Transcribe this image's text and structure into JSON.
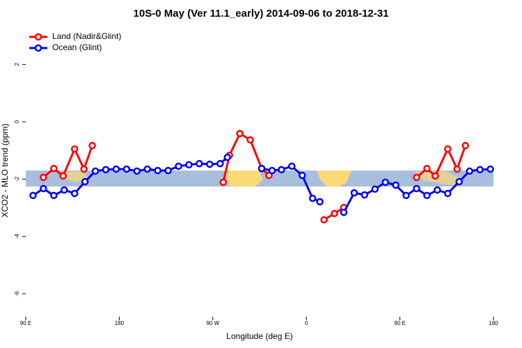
{
  "chart_data": {
    "type": "line",
    "title": "10S-0 May (Ver 11.1_early)   2014-09-06 to 2018-12-31",
    "x_label": "Longitude (deg E)",
    "y_label": "XCO2 - MLO trend (ppm)",
    "xlim": [
      90,
      540
    ],
    "ylim": [
      -6.8,
      3.4
    ],
    "xticks": [
      {
        "value": 90,
        "label": "90 E"
      },
      180,
      {
        "value": 270,
        "label": "90 W"
      },
      {
        "value": 360,
        "label": "0"
      },
      {
        "value": 450,
        "label": "90 E"
      },
      {
        "value": 540,
        "label": "180"
      }
    ],
    "yticks": [
      -6,
      -4,
      -2,
      0,
      2
    ],
    "legend": "top-left",
    "series": [
      {
        "name": "Land (Nadir&Glint)",
        "color": "#ff0000",
        "x": [
          107,
          117,
          126,
          137,
          146,
          154,
          null,
          280,
          286,
          296,
          306,
          317,
          324,
          null,
          377,
          387,
          396,
          null,
          466,
          476,
          484,
          496,
          505,
          513
        ],
        "values": [
          -1.94,
          -1.63,
          -1.89,
          -0.95,
          -1.65,
          -0.83,
          null,
          -2.11,
          -1.17,
          -0.41,
          -0.63,
          -1.63,
          -1.87,
          null,
          -3.42,
          -3.2,
          -2.99,
          null,
          -1.94,
          -1.63,
          -1.89,
          -0.95,
          -1.65,
          -0.83
        ]
      },
      {
        "name": "Ocean (Glint)",
        "color": "#0000ff",
        "x": [
          97,
          107,
          117,
          127,
          137,
          147,
          157,
          167,
          177,
          187,
          197,
          207,
          217,
          227,
          237,
          247,
          257,
          267,
          277,
          284,
          null,
          317,
          327,
          336,
          346,
          356,
          366,
          373,
          null,
          396,
          406,
          416,
          426,
          436,
          446,
          456,
          466,
          476,
          486,
          496,
          507,
          517,
          527,
          537
        ],
        "values": [
          -2.57,
          -2.33,
          -2.57,
          -2.38,
          -2.5,
          -2.09,
          -1.72,
          -1.67,
          -1.65,
          -1.65,
          -1.72,
          -1.65,
          -1.7,
          -1.7,
          -1.55,
          -1.5,
          -1.46,
          -1.48,
          -1.46,
          -1.24,
          null,
          -1.63,
          -1.7,
          -1.67,
          -1.55,
          -1.87,
          -2.67,
          -2.79,
          null,
          -3.16,
          -2.48,
          -2.55,
          -2.35,
          -2.11,
          -2.21,
          -2.57,
          -2.33,
          -2.57,
          -2.38,
          -2.5,
          -2.09,
          -1.72,
          -1.67,
          -1.65
        ]
      }
    ]
  }
}
